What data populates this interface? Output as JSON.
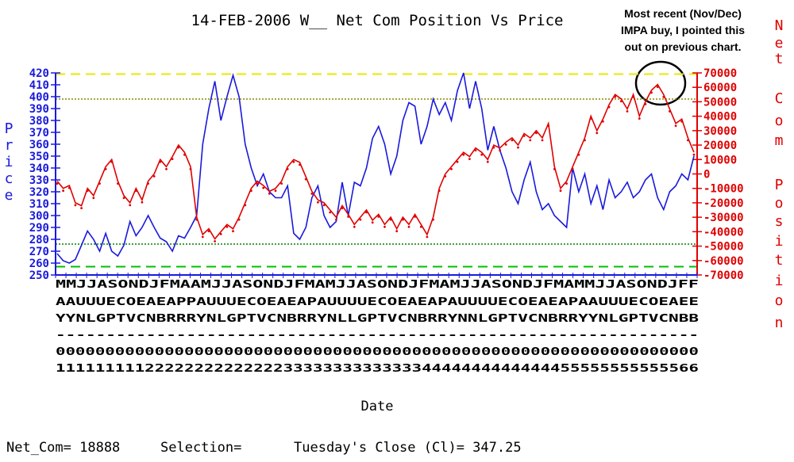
{
  "chart_data": {
    "type": "line",
    "title": "14-FEB-2006 W__ Net Com Position Vs Price",
    "annotation": {
      "lines": [
        "Most recent (Nov/Dec)",
        "IMPA buy, I pointed this",
        "out on previous chart."
      ]
    },
    "y_left": {
      "label": "Price",
      "min": 250,
      "max": 420,
      "step": 10,
      "ticks": [
        "420",
        "410",
        "400",
        "390",
        "380",
        "370",
        "360",
        "350",
        "340",
        "330",
        "320",
        "310",
        "300",
        "290",
        "280",
        "270",
        "260",
        "250"
      ],
      "color": "#1a1adc"
    },
    "y_right": {
      "label": "Net Com Position",
      "min": -70000,
      "max": 70000,
      "ticks": [
        "70000",
        "60000",
        "50000",
        "40000",
        "30000",
        "20000",
        "10000",
        "0",
        "-10000",
        "-20000",
        "-30000",
        "-40000",
        "-50000",
        "-60000",
        "-70000"
      ],
      "color": "#e00000"
    },
    "x_label": "Date",
    "date_rows": [
      "MMJJASONDJFMAAMJJASONDJFMAMJJASONDJFMAMJJASONDJFMAMMJJASONDJFF",
      "AAUUUECOEAEAPPAUUUECOEAEAPAUUUUECOEAEAPAUUUUECOEAEAPAAUUUECOEAEE",
      "YYNLGPTVCNBRRRYNLGPTVCNBRRYNLLGPTVCNBRRYNNLGPTVCNBRRYYNLGPTVCNBB",
      "----------------------------------------------------------------",
      "00000000000000000000000000000000000000000000000000000000000000000",
      "11111111122222222222222333333333333334444444444444455555555555566"
    ],
    "reference_lines": [
      {
        "axis": "left",
        "value": 419,
        "color": "#e8e800",
        "style": "dashed"
      },
      {
        "axis": "left",
        "value": 398,
        "color": "#8a8a00",
        "style": "dotted"
      },
      {
        "axis": "left",
        "value": 276,
        "color": "#008000",
        "style": "dotted"
      },
      {
        "axis": "left",
        "value": 257,
        "color": "#00c000",
        "style": "dashed"
      }
    ],
    "price_points": [
      [
        0,
        268
      ],
      [
        1,
        262
      ],
      [
        2,
        260
      ],
      [
        3,
        263
      ],
      [
        4,
        275
      ],
      [
        5,
        287
      ],
      [
        6,
        280
      ],
      [
        7,
        270
      ],
      [
        8,
        285
      ],
      [
        9,
        270
      ],
      [
        10,
        266
      ],
      [
        11,
        275
      ],
      [
        12,
        295
      ],
      [
        13,
        283
      ],
      [
        14,
        290
      ],
      [
        15,
        300
      ],
      [
        16,
        290
      ],
      [
        17,
        281
      ],
      [
        18,
        278
      ],
      [
        19,
        270
      ],
      [
        20,
        283
      ],
      [
        21,
        281
      ],
      [
        22,
        290
      ],
      [
        23,
        300
      ],
      [
        24,
        360
      ],
      [
        25,
        390
      ],
      [
        26,
        413
      ],
      [
        27,
        380
      ],
      [
        28,
        400
      ],
      [
        29,
        418
      ],
      [
        30,
        400
      ],
      [
        31,
        360
      ],
      [
        32,
        340
      ],
      [
        33,
        325
      ],
      [
        34,
        335
      ],
      [
        35,
        320
      ],
      [
        36,
        315
      ],
      [
        37,
        315
      ],
      [
        38,
        325
      ],
      [
        39,
        285
      ],
      [
        40,
        280
      ],
      [
        41,
        290
      ],
      [
        42,
        315
      ],
      [
        43,
        325
      ],
      [
        44,
        300
      ],
      [
        45,
        290
      ],
      [
        46,
        295
      ],
      [
        47,
        328
      ],
      [
        48,
        300
      ],
      [
        49,
        328
      ],
      [
        50,
        325
      ],
      [
        51,
        340
      ],
      [
        52,
        365
      ],
      [
        53,
        375
      ],
      [
        54,
        360
      ],
      [
        55,
        335
      ],
      [
        56,
        350
      ],
      [
        57,
        380
      ],
      [
        58,
        395
      ],
      [
        59,
        392
      ],
      [
        60,
        360
      ],
      [
        61,
        375
      ],
      [
        62,
        398
      ],
      [
        63,
        385
      ],
      [
        64,
        395
      ],
      [
        65,
        380
      ],
      [
        66,
        405
      ],
      [
        67,
        420
      ],
      [
        68,
        390
      ],
      [
        69,
        413
      ],
      [
        70,
        390
      ],
      [
        71,
        355
      ],
      [
        72,
        375
      ],
      [
        73,
        355
      ],
      [
        74,
        340
      ],
      [
        75,
        320
      ],
      [
        76,
        310
      ],
      [
        77,
        330
      ],
      [
        78,
        345
      ],
      [
        79,
        320
      ],
      [
        80,
        305
      ],
      [
        81,
        310
      ],
      [
        82,
        300
      ],
      [
        83,
        295
      ],
      [
        84,
        290
      ],
      [
        85,
        340
      ],
      [
        86,
        320
      ],
      [
        87,
        335
      ],
      [
        88,
        310
      ],
      [
        89,
        325
      ],
      [
        90,
        305
      ],
      [
        91,
        330
      ],
      [
        92,
        315
      ],
      [
        93,
        320
      ],
      [
        94,
        328
      ],
      [
        95,
        315
      ],
      [
        96,
        320
      ],
      [
        97,
        330
      ],
      [
        98,
        335
      ],
      [
        99,
        315
      ],
      [
        100,
        305
      ],
      [
        101,
        320
      ],
      [
        102,
        325
      ],
      [
        103,
        335
      ],
      [
        104,
        330
      ],
      [
        105,
        350
      ]
    ],
    "net_com_points": [
      [
        0,
        -5000
      ],
      [
        1,
        -10000
      ],
      [
        2,
        -8000
      ],
      [
        3,
        -20000
      ],
      [
        4,
        -22000
      ],
      [
        5,
        -10000
      ],
      [
        6,
        -15000
      ],
      [
        7,
        -5000
      ],
      [
        8,
        5000
      ],
      [
        9,
        10000
      ],
      [
        10,
        -5000
      ],
      [
        11,
        -15000
      ],
      [
        12,
        -20000
      ],
      [
        13,
        -10000
      ],
      [
        14,
        -18000
      ],
      [
        15,
        -5000
      ],
      [
        16,
        0
      ],
      [
        17,
        10000
      ],
      [
        18,
        5000
      ],
      [
        19,
        12000
      ],
      [
        20,
        20000
      ],
      [
        21,
        15000
      ],
      [
        22,
        5000
      ],
      [
        23,
        -30000
      ],
      [
        24,
        -42000
      ],
      [
        25,
        -38000
      ],
      [
        26,
        -45000
      ],
      [
        27,
        -40000
      ],
      [
        28,
        -35000
      ],
      [
        29,
        -38000
      ],
      [
        30,
        -30000
      ],
      [
        31,
        -20000
      ],
      [
        32,
        -10000
      ],
      [
        33,
        -5000
      ],
      [
        34,
        -8000
      ],
      [
        35,
        -12000
      ],
      [
        36,
        -10000
      ],
      [
        37,
        -5000
      ],
      [
        38,
        5000
      ],
      [
        39,
        10000
      ],
      [
        40,
        8000
      ],
      [
        41,
        -2000
      ],
      [
        42,
        -12000
      ],
      [
        43,
        -18000
      ],
      [
        44,
        -20000
      ],
      [
        45,
        -25000
      ],
      [
        46,
        -30000
      ],
      [
        47,
        -22000
      ],
      [
        48,
        -28000
      ],
      [
        49,
        -35000
      ],
      [
        50,
        -30000
      ],
      [
        51,
        -25000
      ],
      [
        52,
        -32000
      ],
      [
        53,
        -28000
      ],
      [
        54,
        -35000
      ],
      [
        55,
        -30000
      ],
      [
        56,
        -38000
      ],
      [
        57,
        -30000
      ],
      [
        58,
        -35000
      ],
      [
        59,
        -28000
      ],
      [
        60,
        -35000
      ],
      [
        61,
        -42000
      ],
      [
        62,
        -30000
      ],
      [
        63,
        -10000
      ],
      [
        64,
        0
      ],
      [
        65,
        5000
      ],
      [
        66,
        10000
      ],
      [
        67,
        15000
      ],
      [
        68,
        12000
      ],
      [
        69,
        18000
      ],
      [
        70,
        15000
      ],
      [
        71,
        10000
      ],
      [
        72,
        20000
      ],
      [
        73,
        18000
      ],
      [
        74,
        22000
      ],
      [
        75,
        25000
      ],
      [
        76,
        20000
      ],
      [
        77,
        28000
      ],
      [
        78,
        25000
      ],
      [
        79,
        30000
      ],
      [
        80,
        25000
      ],
      [
        81,
        35000
      ],
      [
        82,
        5000
      ],
      [
        83,
        -10000
      ],
      [
        84,
        -5000
      ],
      [
        85,
        5000
      ],
      [
        86,
        15000
      ],
      [
        87,
        25000
      ],
      [
        88,
        40000
      ],
      [
        89,
        30000
      ],
      [
        90,
        38000
      ],
      [
        91,
        48000
      ],
      [
        92,
        55000
      ],
      [
        93,
        52000
      ],
      [
        94,
        45000
      ],
      [
        95,
        55000
      ],
      [
        96,
        40000
      ],
      [
        97,
        50000
      ],
      [
        98,
        58000
      ],
      [
        99,
        62000
      ],
      [
        100,
        55000
      ],
      [
        101,
        45000
      ],
      [
        102,
        35000
      ],
      [
        103,
        38000
      ],
      [
        104,
        25000
      ],
      [
        105,
        15000
      ]
    ]
  },
  "status": {
    "net_com": "Net_Com= 18888",
    "selection": "Selection=",
    "close": "Tuesday's Close (Cl)= 347.25"
  }
}
